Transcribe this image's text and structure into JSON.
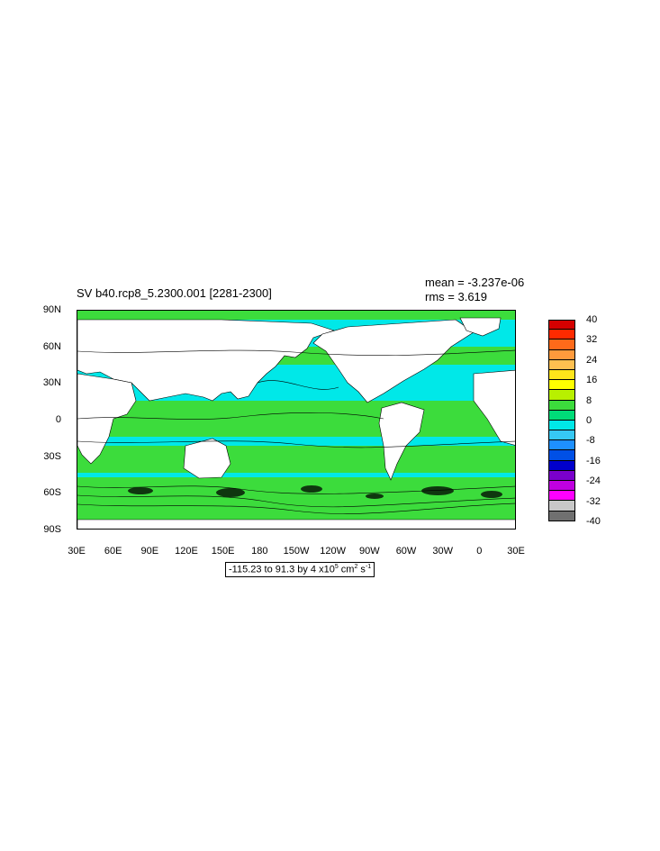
{
  "title": "SV b40.rcp8_5.2300.001 [2281-2300]",
  "stats": {
    "mean": "mean = -3.237e-06",
    "rms": "rms = 3.619"
  },
  "lat_labels": [
    "90N",
    "60N",
    "30N",
    "0",
    "30S",
    "60S",
    "90S"
  ],
  "lon_labels": [
    "30E",
    "60E",
    "90E",
    "120E",
    "150E",
    "180",
    "150W",
    "120W",
    "90W",
    "60W",
    "30W",
    "0",
    "30E"
  ],
  "colorbar": {
    "labels": [
      "40",
      "32",
      "24",
      "16",
      "8",
      "0",
      "-8",
      "-16",
      "-24",
      "-32",
      "-40"
    ],
    "colors": [
      "#d40000",
      "#ff2a00",
      "#ff6a1a",
      "#ff9a3c",
      "#ffc050",
      "#ffe51a",
      "#ffff00",
      "#b8f000",
      "#3cdc3c",
      "#00dc78",
      "#00e8e8",
      "#36c8f4",
      "#1e90ff",
      "#0050e6",
      "#0000cc",
      "#7a00cc",
      "#c000e0",
      "#ff00ff",
      "#c8c8c8",
      "#707070"
    ]
  },
  "range_text": {
    "prefix": "-115.23 to 91.3 by 4 x10",
    "exp1": "5",
    "mid": " cm",
    "exp2": "2",
    "s": " s",
    "exp3": "-1"
  },
  "map": {
    "ocean_color": "#3cdc3c",
    "ocean_light_color": "#00e8e8",
    "land_color": "#ffffff",
    "contour_color": "#000000"
  }
}
